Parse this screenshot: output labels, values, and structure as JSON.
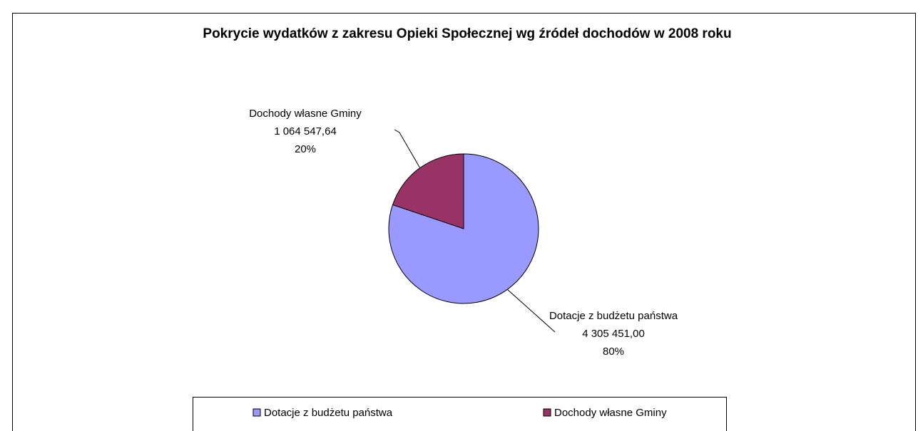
{
  "chart_data": {
    "type": "pie",
    "title": "Pokrycie wydatków z zakresu Opieki Społecznej wg źródeł dochodów w 2008 roku",
    "categories": [
      "Dotacje z budżetu państwa",
      "Dochody własne Gminy"
    ],
    "values": [
      4305451.0,
      1064547.64
    ],
    "value_labels": [
      "4 305 451,00",
      "1 064 547,64"
    ],
    "percentages": [
      80,
      20
    ],
    "percentage_labels": [
      "80%",
      "20%"
    ],
    "colors": [
      "#9999ff",
      "#993366"
    ],
    "legend": "bottom"
  }
}
